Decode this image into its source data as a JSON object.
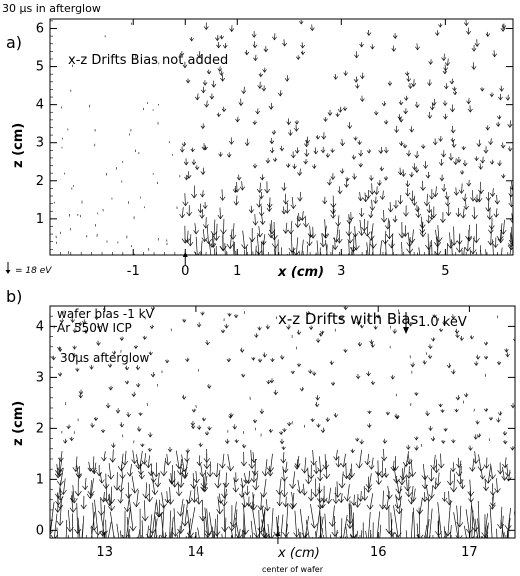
{
  "chart_data": [
    {
      "panel_label": "a)",
      "top_caption": "30 μs in afterglow",
      "type": "quiver",
      "title": "x-z Drifts Bias not added",
      "xlabel": "x (cm)",
      "ylabel": "z (cm)",
      "xlim": [
        -2.6,
        6.3
      ],
      "ylim": [
        0.05,
        6.25
      ],
      "x_ticks": [
        -1,
        0,
        1,
        3,
        5
      ],
      "y_ticks": [
        1,
        2,
        3,
        4,
        5,
        6
      ],
      "scale_label": "= 18 eV",
      "marker_x": 0,
      "field": {
        "boundary_x": -0.1,
        "density_bands": [
          [
            0.05,
            1.0,
            0.85
          ],
          [
            1.0,
            2.0,
            0.6
          ],
          [
            2.0,
            3.0,
            0.42
          ],
          [
            3.0,
            4.5,
            0.3
          ],
          [
            4.5,
            6.25,
            0.2
          ]
        ],
        "arrow_length_bands": [
          [
            0.05,
            0.5,
            1.0
          ],
          [
            0.5,
            1.0,
            0.55
          ],
          [
            1.0,
            2.0,
            0.35
          ],
          [
            2.0,
            6.25,
            0.2
          ]
        ],
        "direction": "down"
      }
    },
    {
      "panel_label": "b)",
      "type": "quiver",
      "title": "x-z Drifts with Bias",
      "xlabel": "x (cm)",
      "ylabel": "z (cm)",
      "xlim": [
        12.4,
        17.5
      ],
      "ylim": [
        -0.15,
        4.4
      ],
      "x_ticks": [
        13,
        14,
        16,
        17
      ],
      "y_ticks": [
        0,
        1,
        2,
        3,
        4
      ],
      "annotations": [
        "wafer bias -1 kV",
        "Ar 550W ICP",
        "30μs afterglow"
      ],
      "scale_label": "1.0 keV",
      "marker_label": "center of wafer",
      "marker_x": 14.9,
      "field": {
        "density_bands": [
          [
            -0.15,
            0.6,
            0.8
          ],
          [
            0.6,
            1.6,
            0.7
          ],
          [
            1.6,
            2.4,
            0.35
          ],
          [
            2.4,
            4.4,
            0.22
          ]
        ],
        "arrow_length_bands": [
          [
            -0.15,
            0.6,
            1.0
          ],
          [
            0.6,
            1.6,
            0.45
          ],
          [
            1.6,
            4.4,
            0.12
          ]
        ],
        "direction": "down"
      }
    }
  ]
}
